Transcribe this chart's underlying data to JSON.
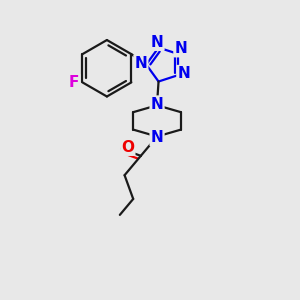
{
  "bg_color": "#e8e8e8",
  "bond_color": "#1a1a1a",
  "N_color": "#0000ee",
  "O_color": "#ee0000",
  "F_color": "#dd00dd",
  "line_width": 1.6,
  "font_size_atom": 11,
  "fig_width": 3.0,
  "fig_height": 3.0,
  "xlim": [
    0,
    10
  ],
  "ylim": [
    0,
    10
  ]
}
